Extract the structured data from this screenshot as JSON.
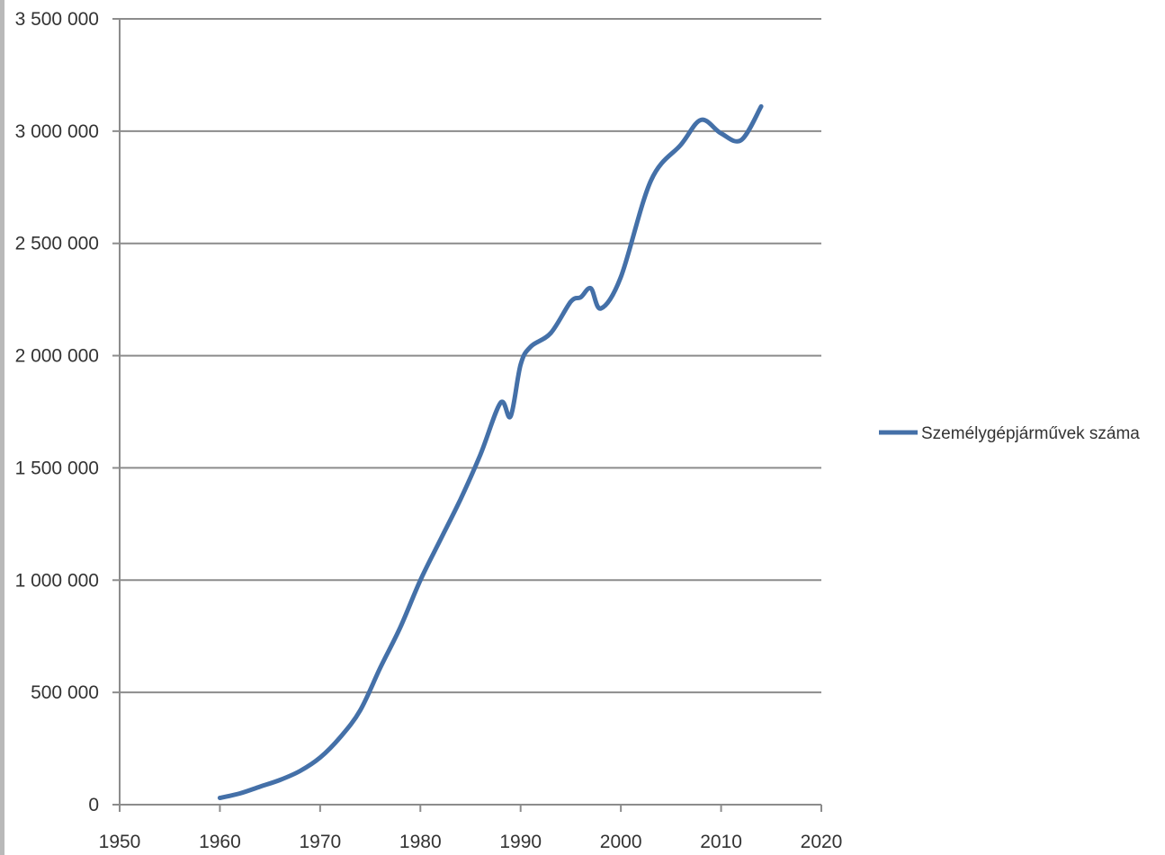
{
  "chart_data": {
    "type": "line",
    "title": "",
    "xlabel": "",
    "ylabel": "",
    "xlim": [
      1950,
      2020
    ],
    "ylim": [
      0,
      3500000
    ],
    "x_ticks": [
      1950,
      1960,
      1970,
      1980,
      1990,
      2000,
      2010,
      2020
    ],
    "y_ticks": [
      0,
      500000,
      1000000,
      1500000,
      2000000,
      2500000,
      3000000,
      3500000
    ],
    "x_tick_labels": [
      "1950",
      "1960",
      "1970",
      "1980",
      "1990",
      "2000",
      "2010",
      "2020"
    ],
    "y_tick_labels": [
      "0",
      "500 000",
      "1 000 000",
      "1 500 000",
      "2 000 000",
      "2 500 000",
      "3 000 000",
      "3 500 000"
    ],
    "grid": "horizontal",
    "legend_position": "right",
    "series": [
      {
        "name": "Személygépjárművek száma",
        "color": "#4470a8",
        "x": [
          1960,
          1962,
          1964,
          1966,
          1968,
          1970,
          1972,
          1974,
          1976,
          1978,
          1980,
          1982,
          1984,
          1986,
          1988,
          1989,
          1990,
          1991,
          1993,
          1995,
          1996,
          1997,
          1998,
          2000,
          2003,
          2006,
          2008,
          2010,
          2012,
          2014
        ],
        "y": [
          30000,
          50000,
          80000,
          110000,
          150000,
          210000,
          300000,
          420000,
          610000,
          790000,
          1000000,
          1180000,
          1360000,
          1560000,
          1790000,
          1730000,
          1960000,
          2040000,
          2100000,
          2240000,
          2260000,
          2300000,
          2210000,
          2350000,
          2780000,
          2940000,
          3050000,
          2990000,
          2960000,
          3110000
        ]
      }
    ]
  }
}
